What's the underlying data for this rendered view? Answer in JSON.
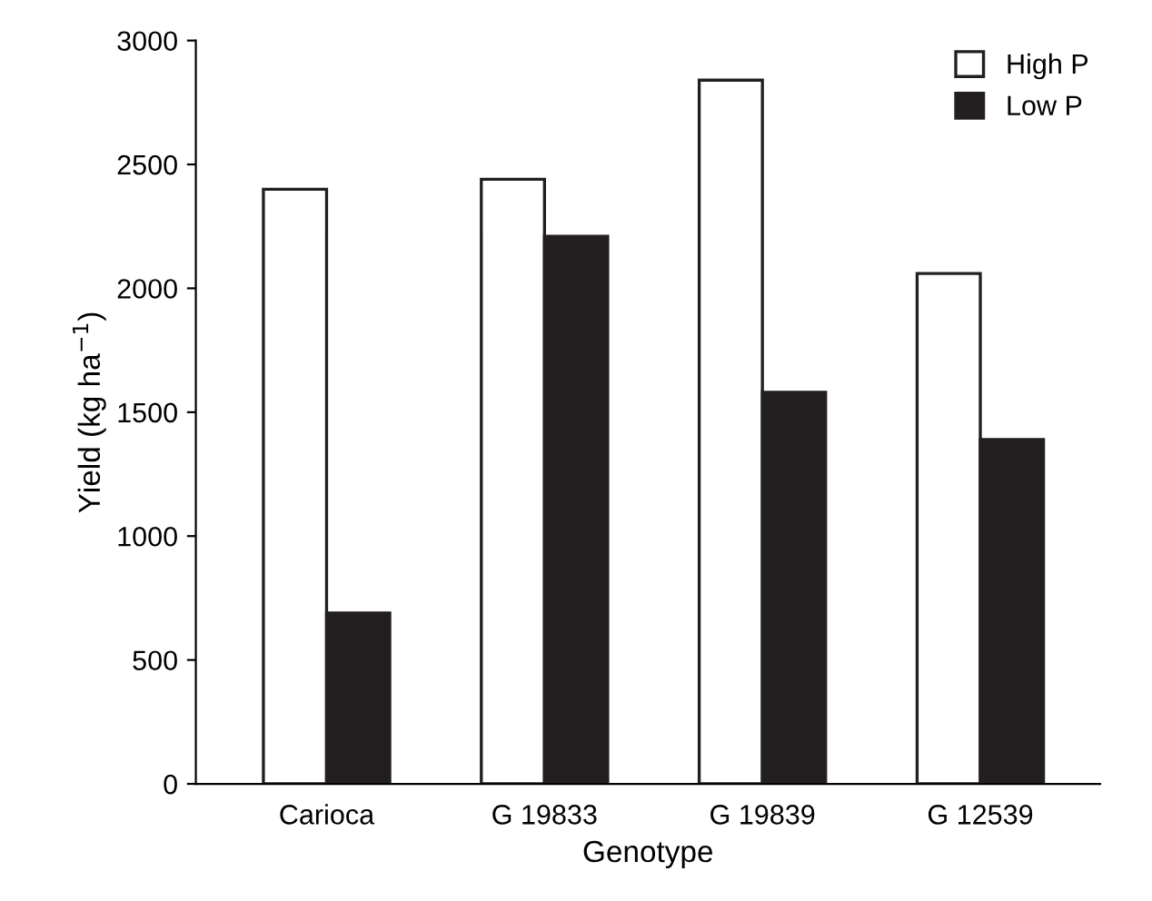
{
  "chart_data": {
    "type": "bar",
    "xlabel": "Genotype",
    "ylabel": "Yield (kg ha$^{−1}$)",
    "categories": [
      "Carioca",
      "G 19833",
      "G 19839",
      "G 12539"
    ],
    "series": [
      {
        "name": "High P",
        "color": "#ffffff",
        "values": [
          2400,
          2440,
          2840,
          2060
        ]
      },
      {
        "name": "Low P",
        "color": "#231f20",
        "values": [
          690,
          2210,
          1580,
          1390
        ]
      }
    ],
    "ylim": [
      0,
      3000
    ],
    "yticks": [
      0,
      500,
      1000,
      1500,
      2000,
      2500,
      3000
    ],
    "grid": false,
    "legend": "top right"
  }
}
